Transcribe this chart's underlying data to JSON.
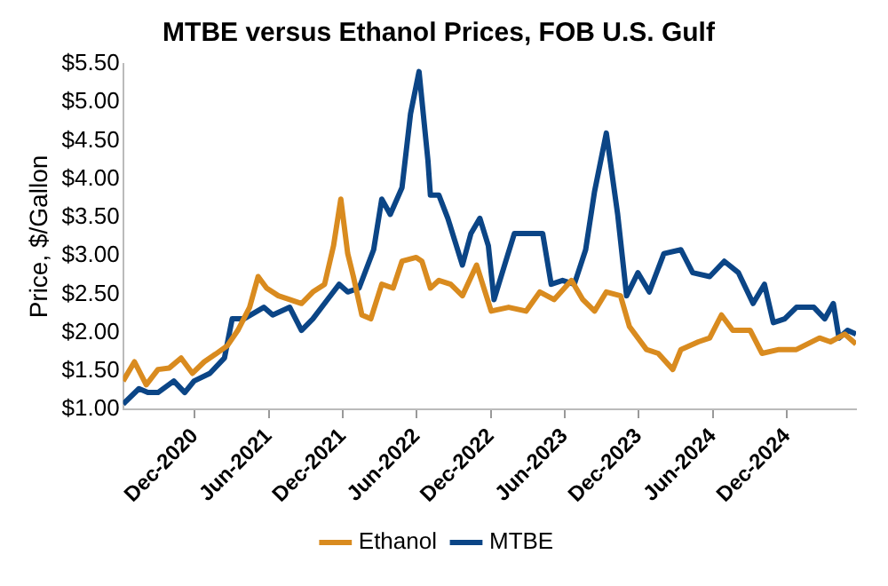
{
  "chart_data": {
    "type": "line",
    "title": "MTBE versus Ethanol Prices, FOB U.S. Gulf",
    "ylabel": "Price, $/Gallon",
    "xlim": [
      "2020-06-07",
      "2025-05-20"
    ],
    "xticks": [
      {
        "value": "2020-12-01",
        "label": "Dec-2020"
      },
      {
        "value": "2021-06-01",
        "label": "Jun-2021"
      },
      {
        "value": "2021-12-01",
        "label": "Dec-2021"
      },
      {
        "value": "2022-06-01",
        "label": "Jun-2022"
      },
      {
        "value": "2022-12-01",
        "label": "Dec-2022"
      },
      {
        "value": "2023-06-01",
        "label": "Jun-2023"
      },
      {
        "value": "2023-12-01",
        "label": "Dec-2023"
      },
      {
        "value": "2024-06-01",
        "label": "Jun-2024"
      },
      {
        "value": "2024-12-01",
        "label": "Dec-2024"
      }
    ],
    "ylim": [
      1,
      5.5
    ],
    "yticks": [
      {
        "value": 1,
        "label": "$1.00"
      },
      {
        "value": 1.5,
        "label": "$1.50"
      },
      {
        "value": 2,
        "label": "$2.00"
      },
      {
        "value": 2.5,
        "label": "$2.50"
      },
      {
        "value": 3,
        "label": "$3.00"
      },
      {
        "value": 3.5,
        "label": "$3.50"
      },
      {
        "value": 4,
        "label": "$4.00"
      },
      {
        "value": 4.5,
        "label": "$4.50"
      },
      {
        "value": 5,
        "label": "$5.00"
      },
      {
        "value": 5.5,
        "label": "$5.50"
      }
    ],
    "grid": false,
    "legend": "bottom",
    "marker": "none",
    "line_style": "solid",
    "series": [
      {
        "name": "Ethanol",
        "color": "#d98b1f",
        "x": [
          "2020-06-07",
          "2020-07-05",
          "2020-08-03",
          "2020-09-01",
          "2020-09-29",
          "2020-10-28",
          "2020-11-25",
          "2020-12-24",
          "2021-01-21",
          "2021-02-19",
          "2021-03-17",
          "2021-04-15",
          "2021-05-06",
          "2021-05-27",
          "2021-06-25",
          "2021-07-23",
          "2021-08-21",
          "2021-09-18",
          "2021-10-17",
          "2021-11-08",
          "2021-11-26",
          "2021-12-13",
          "2021-12-27",
          "2022-01-17",
          "2022-02-08",
          "2022-03-07",
          "2022-04-04",
          "2022-04-26",
          "2022-05-31",
          "2022-06-14",
          "2022-07-05",
          "2022-07-26",
          "2022-08-24",
          "2022-09-22",
          "2022-10-27",
          "2022-12-02",
          "2023-01-14",
          "2023-02-26",
          "2023-04-01",
          "2023-05-06",
          "2023-06-18",
          "2023-07-16",
          "2023-08-14",
          "2023-09-12",
          "2023-10-17",
          "2023-11-08",
          "2023-12-20",
          "2024-01-18",
          "2024-02-23",
          "2024-03-14",
          "2024-04-26",
          "2024-05-24",
          "2024-06-22",
          "2024-07-20",
          "2024-09-01",
          "2024-09-30",
          "2024-11-11",
          "2024-12-24",
          "2025-02-19",
          "2025-03-18",
          "2025-04-22",
          "2025-05-20"
        ],
        "values": [
          1.37,
          1.62,
          1.32,
          1.52,
          1.54,
          1.67,
          1.47,
          1.62,
          1.72,
          1.83,
          2.03,
          2.33,
          2.73,
          2.58,
          2.48,
          2.43,
          2.38,
          2.53,
          2.63,
          3.13,
          3.74,
          3.03,
          2.73,
          2.23,
          2.18,
          2.63,
          2.58,
          2.93,
          2.98,
          2.93,
          2.58,
          2.68,
          2.63,
          2.48,
          2.88,
          2.28,
          2.33,
          2.28,
          2.53,
          2.43,
          2.68,
          2.43,
          2.28,
          2.53,
          2.48,
          2.08,
          1.78,
          1.73,
          1.52,
          1.78,
          1.88,
          1.93,
          2.23,
          2.03,
          2.03,
          1.73,
          1.78,
          1.78,
          1.93,
          1.88,
          1.98,
          1.85
        ]
      },
      {
        "name": "MTBE",
        "color": "#0b4586",
        "x": [
          "2020-06-07",
          "2020-07-16",
          "2020-08-07",
          "2020-09-01",
          "2020-10-10",
          "2020-11-06",
          "2020-11-29",
          "2021-01-07",
          "2021-02-12",
          "2021-03-03",
          "2021-04-01",
          "2021-05-20",
          "2021-06-11",
          "2021-07-23",
          "2021-08-21",
          "2021-09-18",
          "2021-10-24",
          "2021-11-22",
          "2021-12-13",
          "2022-01-10",
          "2022-02-15",
          "2022-03-07",
          "2022-03-28",
          "2022-04-26",
          "2022-05-17",
          "2022-06-07",
          "2022-06-29",
          "2022-07-05",
          "2022-07-26",
          "2022-08-17",
          "2022-09-22",
          "2022-10-13",
          "2022-11-04",
          "2022-11-25",
          "2022-12-09",
          "2023-01-07",
          "2023-01-28",
          "2023-03-03",
          "2023-04-08",
          "2023-04-29",
          "2023-05-27",
          "2023-06-25",
          "2023-07-23",
          "2023-08-14",
          "2023-09-12",
          "2023-10-10",
          "2023-11-01",
          "2023-11-29",
          "2023-12-27",
          "2024-02-01",
          "2024-03-14",
          "2024-04-12",
          "2024-05-24",
          "2024-06-29",
          "2024-08-03",
          "2024-09-08",
          "2024-10-06",
          "2024-10-28",
          "2024-11-25",
          "2024-12-24",
          "2025-02-05",
          "2025-03-04",
          "2025-03-25",
          "2025-04-08",
          "2025-04-29",
          "2025-05-20"
        ],
        "values": [
          1.07,
          1.27,
          1.22,
          1.22,
          1.37,
          1.22,
          1.37,
          1.47,
          1.67,
          2.18,
          2.18,
          2.33,
          2.23,
          2.33,
          2.03,
          2.18,
          2.43,
          2.63,
          2.53,
          2.58,
          3.08,
          3.74,
          3.54,
          3.89,
          4.85,
          5.4,
          4.24,
          3.79,
          3.79,
          3.49,
          2.88,
          3.29,
          3.49,
          3.13,
          2.43,
          2.93,
          3.29,
          3.29,
          3.29,
          2.63,
          2.68,
          2.63,
          3.08,
          3.84,
          4.6,
          3.54,
          2.48,
          2.78,
          2.53,
          3.03,
          3.08,
          2.78,
          2.73,
          2.93,
          2.78,
          2.38,
          2.63,
          2.13,
          2.18,
          2.33,
          2.33,
          2.18,
          2.38,
          1.93,
          2.03,
          1.98
        ]
      }
    ]
  }
}
